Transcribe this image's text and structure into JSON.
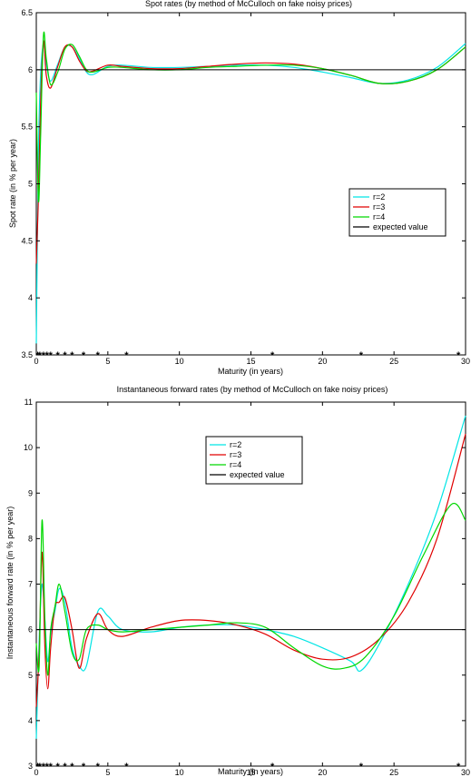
{
  "chart_data": [
    {
      "type": "line",
      "title": "Spot rates (by method of McCulloch on fake noisy prices)",
      "xlabel": "Maturity (in years)",
      "ylabel": "Spot rate (in % per year)",
      "xlim": [
        0,
        30
      ],
      "ylim": [
        3.5,
        6.5
      ],
      "xticks": [
        "0",
        "5",
        "10",
        "15",
        "20",
        "25",
        "30"
      ],
      "yticks": [
        "3.5",
        "4",
        "4.5",
        "5",
        "5.5",
        "6",
        "6.5"
      ],
      "legend_position": "right",
      "legend": [
        "r=2",
        "r=3",
        "r=4",
        "expected value"
      ],
      "colors": {
        "r=2": "#00e5e5",
        "r=3": "#e00000",
        "r=4": "#00d800",
        "expected value": "#000000"
      },
      "series": [
        {
          "name": "r=2",
          "x": [
            0,
            0.15,
            0.3,
            0.5,
            0.7,
            1.0,
            1.5,
            2.0,
            2.5,
            3.0,
            3.5,
            4.0,
            5.0,
            6.0,
            8.0,
            10,
            12,
            14,
            16,
            18,
            20,
            22,
            24,
            26,
            28,
            30
          ],
          "y": [
            3.6,
            5.3,
            5.95,
            6.22,
            6.05,
            5.9,
            6.05,
            6.2,
            6.2,
            6.1,
            5.98,
            5.96,
            6.03,
            6.04,
            6.02,
            6.02,
            6.03,
            6.04,
            6.04,
            6.02,
            5.98,
            5.93,
            5.88,
            5.91,
            6.02,
            6.23
          ]
        },
        {
          "name": "r=3",
          "x": [
            0,
            0.15,
            0.3,
            0.5,
            0.7,
            1.0,
            1.5,
            2.0,
            2.5,
            3.0,
            3.5,
            4.0,
            5.0,
            6.0,
            8.0,
            10,
            12,
            14,
            16,
            18,
            20,
            22,
            24,
            26,
            28,
            30
          ],
          "y": [
            4.3,
            4.9,
            5.7,
            6.25,
            5.95,
            5.84,
            6.03,
            6.2,
            6.2,
            6.08,
            5.99,
            5.99,
            6.04,
            6.03,
            6.01,
            6.01,
            6.03,
            6.05,
            6.06,
            6.05,
            6.01,
            5.95,
            5.88,
            5.9,
            6.0,
            6.2
          ]
        },
        {
          "name": "r=4",
          "x": [
            0,
            0.15,
            0.3,
            0.5,
            0.7,
            1.0,
            1.5,
            2.0,
            2.5,
            3.0,
            3.5,
            4.0,
            5.0,
            6.0,
            8.0,
            10,
            12,
            14,
            16,
            18,
            20,
            22,
            24,
            26,
            28,
            30
          ],
          "y": [
            5.8,
            4.85,
            5.4,
            6.3,
            6.1,
            5.87,
            5.98,
            6.18,
            6.22,
            6.12,
            6.0,
            5.98,
            6.02,
            6.02,
            6.0,
            6.0,
            6.02,
            6.03,
            6.04,
            6.04,
            6.01,
            5.95,
            5.88,
            5.9,
            6.0,
            6.2
          ]
        },
        {
          "name": "expected value",
          "x": [
            0,
            30
          ],
          "y": [
            6,
            6
          ]
        }
      ],
      "markers": {
        "symbol": "*",
        "y": 3.5,
        "x": [
          0.1,
          0.25,
          0.5,
          0.75,
          1.0,
          1.5,
          2.0,
          2.5,
          3.3,
          4.3,
          6.3,
          16.5,
          22.7,
          29.5
        ]
      }
    },
    {
      "type": "line",
      "title": "Instantaneous forward rates (by method of McCulloch on fake noisy prices)",
      "xlabel": "Maturity (in years)",
      "ylabel": "Instantaneous forward rate (in % per year)",
      "xlim": [
        0,
        30
      ],
      "ylim": [
        3,
        11
      ],
      "xticks": [
        "0",
        "5",
        "10",
        "15",
        "20",
        "25",
        "30"
      ],
      "yticks": [
        "3",
        "4",
        "5",
        "6",
        "7",
        "8",
        "9",
        "10",
        "11"
      ],
      "legend_position": "top-center",
      "legend": [
        "r=2",
        "r=3",
        "r=4",
        "expected value"
      ],
      "colors": {
        "r=2": "#00e5e5",
        "r=3": "#e00000",
        "r=4": "#00d800",
        "expected value": "#000000"
      },
      "series": [
        {
          "name": "r=2",
          "x": [
            0,
            0.2,
            0.4,
            0.6,
            0.8,
            1.0,
            1.3,
            1.6,
            2.0,
            2.5,
            3.0,
            3.5,
            4.3,
            5.0,
            6.0,
            8,
            10,
            12,
            14,
            16,
            18,
            20,
            22,
            22.7,
            24,
            26,
            28,
            30
          ],
          "y": [
            3.6,
            5.8,
            7.0,
            6.2,
            5.3,
            5.9,
            6.4,
            6.9,
            6.6,
            5.6,
            5.2,
            5.2,
            6.4,
            6.3,
            6.0,
            5.95,
            6.05,
            6.1,
            6.1,
            6.0,
            5.85,
            5.6,
            5.3,
            5.1,
            5.7,
            7.0,
            8.6,
            10.7
          ]
        },
        {
          "name": "r=3",
          "x": [
            0,
            0.2,
            0.4,
            0.6,
            0.8,
            1.0,
            1.3,
            1.6,
            2.0,
            2.5,
            3.0,
            3.5,
            4.3,
            5.0,
            6.0,
            8,
            10,
            12,
            14,
            16,
            18,
            20,
            22,
            24,
            26,
            28,
            30
          ],
          "y": [
            4.3,
            5.5,
            7.7,
            5.6,
            4.7,
            5.6,
            6.5,
            6.6,
            6.7,
            6.0,
            5.15,
            5.8,
            6.35,
            6.0,
            5.85,
            6.05,
            6.2,
            6.2,
            6.1,
            5.9,
            5.55,
            5.35,
            5.4,
            5.8,
            6.6,
            8.0,
            10.3
          ]
        },
        {
          "name": "r=4",
          "x": [
            0,
            0.2,
            0.4,
            0.6,
            0.8,
            1.0,
            1.3,
            1.6,
            2.0,
            2.5,
            3.0,
            3.5,
            4.3,
            5.0,
            6.0,
            8,
            10,
            12,
            14,
            16,
            18,
            20,
            21.5,
            23,
            25,
            27,
            29,
            30
          ],
          "y": [
            5.7,
            5.2,
            8.4,
            6.2,
            5.0,
            6.0,
            6.5,
            7.0,
            6.4,
            5.5,
            5.35,
            6.0,
            6.1,
            6.0,
            5.95,
            6.0,
            6.05,
            6.1,
            6.15,
            6.05,
            5.6,
            5.2,
            5.15,
            5.4,
            6.3,
            7.6,
            8.75,
            8.4
          ]
        },
        {
          "name": "expected value",
          "x": [
            0,
            30
          ],
          "y": [
            6,
            6
          ]
        }
      ],
      "markers": {
        "symbol": "*",
        "y": 3,
        "x": [
          0.1,
          0.25,
          0.5,
          0.75,
          1.0,
          1.5,
          2.0,
          2.5,
          3.3,
          4.3,
          6.3,
          16.5,
          22.7,
          29.5
        ]
      }
    }
  ]
}
